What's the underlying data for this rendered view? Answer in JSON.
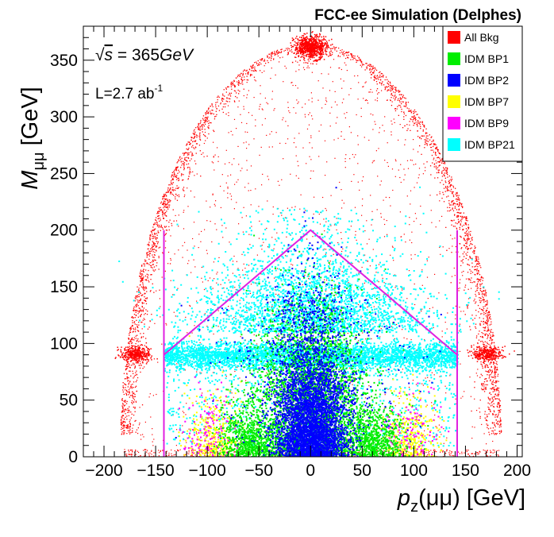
{
  "chart_data": {
    "type": "scatter",
    "title": "FCC-ee Simulation (Delphes)",
    "annotations": {
      "energy": "√s = 365GeV",
      "energy_sqrt": "√",
      "energy_s": "s",
      "energy_value": " = 365",
      "energy_unit": "GeV",
      "lumi_base": "L=2.7 ab",
      "lumi_exp": "-1"
    },
    "xlabel": {
      "main": "p",
      "sub": "z",
      "rest": "(μμ) [GeV]"
    },
    "ylabel": {
      "main": "M",
      "sub": "μμ",
      "rest": " [GeV]"
    },
    "xlim": [
      -220,
      205
    ],
    "ylim": [
      0,
      380
    ],
    "xticks": [
      -200,
      -150,
      -100,
      -50,
      0,
      50,
      100,
      150,
      200
    ],
    "yticks": [
      0,
      50,
      100,
      150,
      200,
      250,
      300,
      350
    ],
    "xtick_labels": [
      "−200",
      "−150",
      "−100",
      "−50",
      "0",
      "50",
      "100",
      "150",
      "200"
    ],
    "ytick_labels": [
      "0",
      "50",
      "100",
      "150",
      "200",
      "250",
      "300",
      "350"
    ],
    "legend_position": "top-right",
    "series": [
      {
        "name": "All Bkg",
        "color": "#ff0000"
      },
      {
        "name": "IDM BP1",
        "color": "#00ee00"
      },
      {
        "name": "IDM BP2",
        "color": "#0000ff"
      },
      {
        "name": "IDM BP7",
        "color": "#ffff00"
      },
      {
        "name": "IDM BP9",
        "color": "#ff00ff"
      },
      {
        "name": "IDM BP21",
        "color": "#00ffff"
      }
    ],
    "cut_lines": [
      {
        "x": [
          -142,
          -142
        ],
        "y": [
          0,
          200
        ]
      },
      {
        "x": [
          142,
          142
        ],
        "y": [
          0,
          200
        ]
      },
      {
        "x": [
          -142,
          0,
          142
        ],
        "y": [
          90,
          200,
          90
        ]
      }
    ]
  }
}
